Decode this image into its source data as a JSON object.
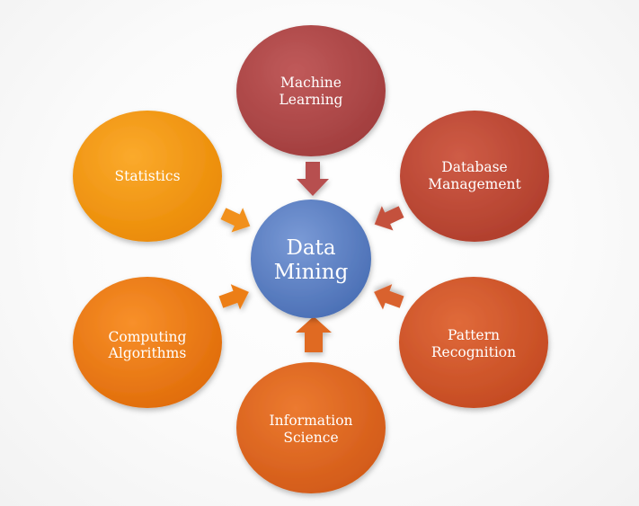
{
  "diagram": {
    "center": {
      "line1": "Data",
      "line2": "Mining",
      "color": "#5b80c4"
    },
    "nodes": {
      "machine_learning": {
        "line1": "Machine",
        "line2": "Learning",
        "color": "#b04848"
      },
      "database_management": {
        "line1": "Database",
        "line2": "Management",
        "color": "#bf4a36"
      },
      "pattern_recognition": {
        "line1": "Pattern",
        "line2": "Recognition",
        "color": "#d4562a"
      },
      "information_science": {
        "line1": "Information",
        "line2": "Science",
        "color": "#de6620"
      },
      "computing_algorithms": {
        "line1": "Computing",
        "line2": "Algorithms",
        "color": "#ea7a12"
      },
      "statistics": {
        "line1": "Statistics",
        "color": "#f2900c"
      }
    },
    "arrow_colors": {
      "machine_learning": "#b75050",
      "database_management": "#c4513d",
      "pattern_recognition": "#d9622f",
      "information_science": "#e06b22",
      "computing_algorithms": "#ec7e18",
      "statistics": "#f1901a"
    }
  }
}
